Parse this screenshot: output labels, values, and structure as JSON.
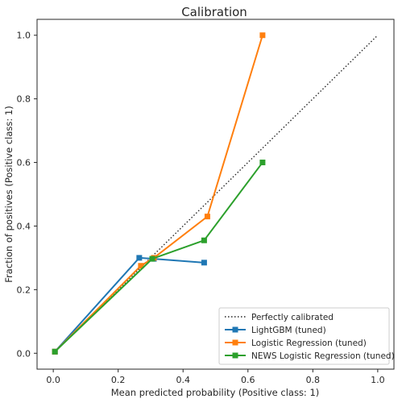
{
  "chart_data": {
    "type": "line",
    "title": "Calibration",
    "xlabel": "Mean predicted probability (Positive class: 1)",
    "ylabel": "Fraction of positives (Positive class: 1)",
    "xlim": [
      -0.05,
      1.05
    ],
    "ylim": [
      -0.05,
      1.05
    ],
    "xticks": [
      0.0,
      0.2,
      0.4,
      0.6,
      0.8,
      1.0
    ],
    "yticks": [
      0.0,
      0.2,
      0.4,
      0.6,
      0.8,
      1.0
    ],
    "xtick_labels": [
      "0.0",
      "0.2",
      "0.4",
      "0.6",
      "0.8",
      "1.0"
    ],
    "ytick_labels": [
      "0.0",
      "0.2",
      "0.4",
      "0.6",
      "0.8",
      "1.0"
    ],
    "grid": false,
    "legend_position": "lower-right",
    "reference": {
      "name": "Perfectly calibrated",
      "x": [
        0,
        1
      ],
      "y": [
        0,
        1
      ],
      "color": "#262626",
      "style": "dotted"
    },
    "series": [
      {
        "name": "LightGBM (tuned)",
        "color": "#1f77b4",
        "x": [
          0.005,
          0.265,
          0.31,
          0.465
        ],
        "y": [
          0.005,
          0.3,
          0.297,
          0.285
        ]
      },
      {
        "name": "Logistic Regression (tuned)",
        "color": "#ff7f0e",
        "x": [
          0.005,
          0.27,
          0.31,
          0.475,
          0.645
        ],
        "y": [
          0.005,
          0.275,
          0.3,
          0.43,
          1.0
        ]
      },
      {
        "name": "NEWS Logistic Regression (tuned)",
        "color": "#2ca02c",
        "x": [
          0.005,
          0.305,
          0.465,
          0.645
        ],
        "y": [
          0.005,
          0.297,
          0.355,
          0.6
        ]
      }
    ]
  }
}
